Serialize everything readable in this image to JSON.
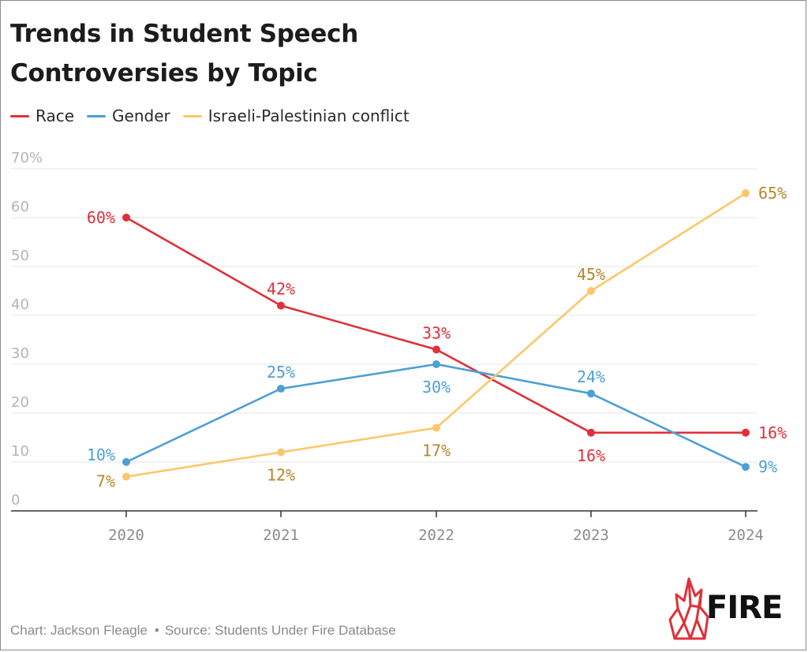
{
  "chart_data": {
    "type": "line",
    "title": "Trends in Student Speech Controversies by Topic",
    "title_lines": [
      "Trends in Student Speech",
      "Controversies by Topic"
    ],
    "x": [
      "2020",
      "2021",
      "2022",
      "2023",
      "2024"
    ],
    "y_ticks": [
      "0",
      "10",
      "20",
      "30",
      "40",
      "50",
      "60",
      "70%"
    ],
    "y_tick_values": [
      0,
      10,
      20,
      30,
      40,
      50,
      60,
      70
    ],
    "ylim": [
      0,
      70
    ],
    "xlabel": "",
    "ylabel": "",
    "grid": true,
    "legend_position": "top-left",
    "series": [
      {
        "name": "Race",
        "color": "#e0303a",
        "label_color": "#e0303a",
        "values": [
          60,
          42,
          33,
          16,
          16
        ],
        "labels": [
          "60%",
          "42%",
          "33%",
          "16%",
          "16%"
        ]
      },
      {
        "name": "Gender",
        "color": "#4d9fd6",
        "label_color": "#4d9fd6",
        "values": [
          10,
          25,
          30,
          24,
          9
        ],
        "labels": [
          "10%",
          "25%",
          "30%",
          "24%",
          "9%"
        ]
      },
      {
        "name": "Israeli-Palestinian conflict",
        "color": "#fcc76a",
        "label_color": "#b5862b",
        "values": [
          7,
          12,
          17,
          45,
          65
        ],
        "labels": [
          "7%",
          "12%",
          "17%",
          "45%",
          "65%"
        ]
      }
    ]
  },
  "footer": {
    "credit": "Chart: Jackson Fleagle",
    "separator": "•",
    "source": "Source: Students Under Fire Database"
  },
  "logo": {
    "text": "FIRE",
    "color": "#e0303a"
  }
}
